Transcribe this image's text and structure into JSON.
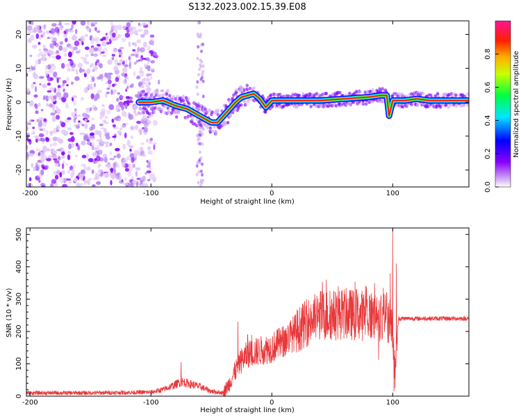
{
  "title": "S132.2023.002.15.39.E08",
  "colors": {
    "snr_line": "#e8383a",
    "colormap": [
      "#ffffff",
      "#c9a0f0",
      "#7a00ff",
      "#0000ff",
      "#00ffff",
      "#00ff00",
      "#ffff00",
      "#ff8000",
      "#ff0000",
      "#ff1493"
    ]
  },
  "chart_data": [
    {
      "type": "heatmap",
      "name": "spectrogram",
      "xlabel": "Height of straight line (km)",
      "ylabel": "Frequency (Hz)",
      "xlim": [
        -203,
        163
      ],
      "ylim": [
        -25,
        24
      ],
      "xticks": [
        -200,
        -100,
        0,
        100
      ],
      "yticks": [
        -20,
        -10,
        0,
        10,
        20
      ],
      "colorbar": {
        "label": "Normalized spectral amplitude",
        "range": [
          0,
          1
        ],
        "ticks": [
          "0.0",
          "0.2",
          "0.4",
          "0.6",
          "0.8"
        ]
      },
      "ridge": {
        "x": [
          -110,
          -100,
          -90,
          -80,
          -70,
          -60,
          -55,
          -50,
          -45,
          -40,
          -35,
          -30,
          -25,
          -20,
          -15,
          -10,
          -5,
          0,
          20,
          40,
          60,
          80,
          90,
          95,
          97,
          100,
          110,
          120,
          130,
          163
        ],
        "y": [
          0,
          0,
          0.5,
          -1,
          -2,
          -4,
          -5,
          -6,
          -6,
          -4,
          -2,
          0,
          1.5,
          2,
          2.5,
          1,
          -1.5,
          0.5,
          0.5,
          0.5,
          1,
          1.5,
          2,
          2,
          -4,
          0.5,
          0.5,
          1,
          0.5,
          0.5
        ]
      }
    },
    {
      "type": "line",
      "name": "snr",
      "xlabel": "Height of straight line (km)",
      "ylabel": "SNR (10 * v/v)",
      "xlim": [
        -203,
        163
      ],
      "ylim": [
        0,
        520
      ],
      "xticks": [
        -200,
        -100,
        0,
        100
      ],
      "yticks": [
        0,
        100,
        200,
        300,
        400,
        500
      ],
      "envelope": {
        "x": [
          -203,
          -150,
          -100,
          -90,
          -80,
          -75,
          -70,
          -60,
          -50,
          -40,
          -35,
          -30,
          -25,
          -20,
          -10,
          0,
          10,
          20,
          30,
          40,
          50,
          60,
          70,
          80,
          90,
          95,
          98,
          100,
          102,
          103,
          105,
          110,
          130,
          150,
          163
        ],
        "y": [
          10,
          10,
          12,
          20,
          35,
          45,
          40,
          30,
          15,
          10,
          40,
          80,
          110,
          130,
          140,
          150,
          170,
          200,
          230,
          250,
          250,
          255,
          250,
          250,
          245,
          240,
          230,
          200,
          40,
          180,
          240,
          240,
          240,
          240,
          240
        ]
      },
      "spikes": [
        {
          "x": -75,
          "y": 105
        },
        {
          "x": -28,
          "y": 230
        },
        {
          "x": -20,
          "y": 190
        },
        {
          "x": 45,
          "y": 360
        },
        {
          "x": 55,
          "y": 340
        },
        {
          "x": 70,
          "y": 330
        },
        {
          "x": 85,
          "y": 350
        },
        {
          "x": 95,
          "y": 320
        },
        {
          "x": 98,
          "y": 380
        },
        {
          "x": 100,
          "y": 520
        },
        {
          "x": 103,
          "y": 410
        },
        {
          "x": 101,
          "y": 15
        }
      ]
    }
  ]
}
